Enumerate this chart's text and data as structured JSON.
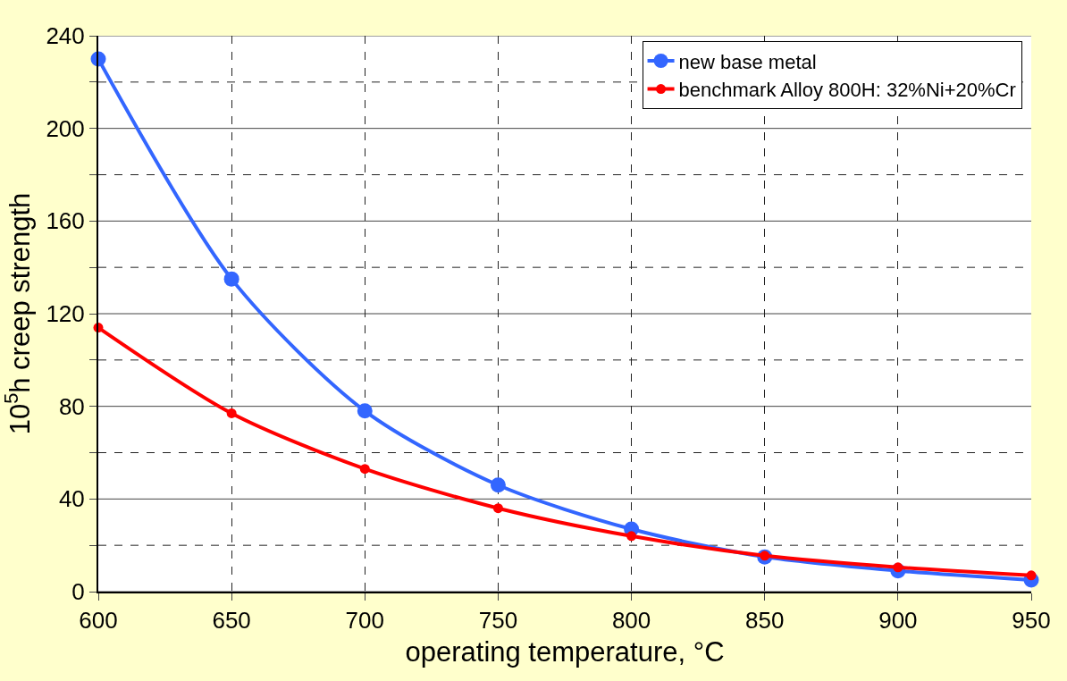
{
  "chart_data": {
    "type": "line",
    "xlabel": "operating temperature, °C",
    "ylabel": "10$^{5}$h creep strength",
    "x": [
      600,
      650,
      700,
      750,
      800,
      850,
      900,
      950
    ],
    "series": [
      {
        "name": "new base metal",
        "color": "#3366ff",
        "values": [
          230,
          135,
          78,
          46,
          27,
          15,
          9,
          5
        ]
      },
      {
        "name": "benchmark Alloy 800H: 32%Ni+20%Cr",
        "color": "#ff0000",
        "values": [
          114,
          77,
          53,
          36,
          24,
          15.5,
          10.5,
          7
        ]
      }
    ],
    "xlim": [
      600,
      950
    ],
    "xticks": [
      600,
      650,
      700,
      750,
      800,
      850,
      900,
      950
    ],
    "ylim": [
      0,
      240
    ],
    "yticks": [
      0,
      {
        "value": 20,
        "label": null
      },
      40,
      {
        "value": 60,
        "label": null
      },
      80,
      {
        "value": 100,
        "label": null
      },
      120,
      {
        "value": 140,
        "label": null
      },
      160,
      {
        "value": 180,
        "label": null
      },
      200,
      {
        "value": 220,
        "label": null
      },
      240
    ],
    "grid": true,
    "legend": "top right",
    "marker": "circle",
    "line_style": "solid"
  }
}
